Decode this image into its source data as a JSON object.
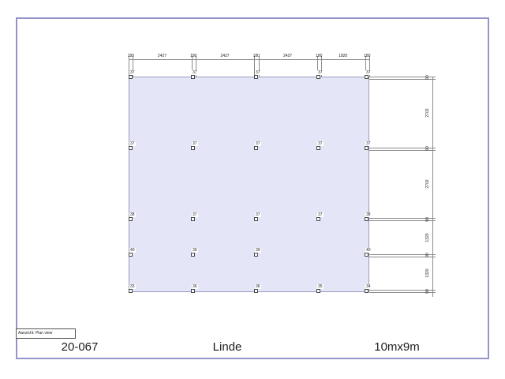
{
  "page": {
    "border_color": "#9494cc",
    "background_color": "#ffffff"
  },
  "drawing": {
    "view_label": "Aanzicht: Plan view",
    "plan": {
      "fill_color": "#e5e5f8",
      "outline_color": "#9a9abe",
      "line_color": "#8a8a8a"
    },
    "top_dims": [
      "180",
      "2427",
      "180",
      "2427",
      "180",
      "2427",
      "180",
      "1820",
      "180"
    ],
    "right_dims": [
      "90",
      "2702",
      "90",
      "2702",
      "90",
      "1320",
      "90",
      "1320",
      "90"
    ],
    "posts": {
      "rows": [
        {
          "labels": [
            "37",
            "37",
            "37",
            "37",
            "37"
          ]
        },
        {
          "labels": [
            "37",
            "37",
            "37",
            "37",
            "37"
          ]
        },
        {
          "labels": [
            "38",
            "37",
            "37",
            "37",
            "38"
          ]
        },
        {
          "labels": [
            "40",
            "39",
            "39",
            null,
            "40"
          ]
        },
        {
          "labels": [
            "33",
            "36",
            "36",
            "35",
            "34"
          ]
        }
      ]
    }
  },
  "titlebar": {
    "project_number": "20-067",
    "project_name": "Linde",
    "size": "10mx9m"
  }
}
